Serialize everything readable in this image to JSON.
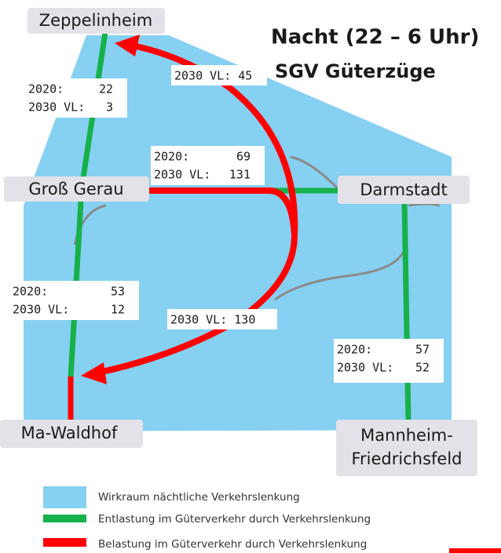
{
  "title": "Nacht (22 – 6 Uhr)",
  "subtitle": "SGV Güterzüge",
  "cities": [
    "Zeppelinheim",
    "Groß Gerau",
    "Darmstadt",
    "Ma-Waldhof",
    [
      "Mannheim-",
      "Friedrichsfeld"
    ]
  ],
  "boxes": [
    {
      "rows": [
        [
          "2020:",
          "22"
        ],
        [
          "2030 VL:",
          "3"
        ]
      ]
    },
    {
      "rows": [
        [
          "2020:",
          "69"
        ],
        [
          "2030 VL:",
          "131"
        ]
      ]
    },
    {
      "rows": [
        [
          "2020:",
          "53"
        ],
        [
          "2030 VL:",
          "12"
        ]
      ]
    },
    {
      "rows": [
        [
          "2020:",
          "57"
        ],
        [
          "2030 VL:",
          "52"
        ]
      ]
    }
  ],
  "flow_labels": [
    "2030 VL: 45",
    "2030 VL: 130"
  ],
  "legend": [
    "Wirkraum nächtliche Verkehrslenkung",
    "Entlastung im Güterverkehr durch Verkehrslenkung",
    "Belastung im Güterverkehr durch Verkehrslenkung"
  ]
}
